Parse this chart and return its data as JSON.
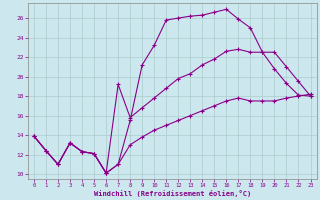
{
  "xlabel": "Windchill (Refroidissement éolien,°C)",
  "bg_color": "#cce8ee",
  "grid_color": "#aacccc",
  "line_color": "#880088",
  "xlim": [
    -0.5,
    23.5
  ],
  "ylim": [
    9.5,
    27.5
  ],
  "xticks": [
    0,
    1,
    2,
    3,
    4,
    5,
    6,
    7,
    8,
    9,
    10,
    11,
    12,
    13,
    14,
    15,
    16,
    17,
    18,
    19,
    20,
    21,
    22,
    23
  ],
  "yticks": [
    10,
    12,
    14,
    16,
    18,
    20,
    22,
    24,
    26
  ],
  "line1_x": [
    0,
    1,
    2,
    3,
    4,
    5,
    6,
    7,
    8,
    9,
    10,
    11,
    12,
    13,
    14,
    15,
    16,
    17,
    18,
    19,
    20,
    21,
    22,
    23
  ],
  "line1_y": [
    13.9,
    12.4,
    11.0,
    13.2,
    12.3,
    12.1,
    10.1,
    11.0,
    15.5,
    21.2,
    23.2,
    25.8,
    26.0,
    26.2,
    26.3,
    26.6,
    26.9,
    25.9,
    25.0,
    22.5,
    20.8,
    19.3,
    18.1,
    18.0
  ],
  "line2_x": [
    0,
    1,
    2,
    3,
    4,
    5,
    6,
    7,
    8,
    9,
    10,
    11,
    12,
    13,
    14,
    15,
    16,
    17,
    18,
    19,
    20,
    21,
    22,
    23
  ],
  "line2_y": [
    13.9,
    12.4,
    11.0,
    13.2,
    12.3,
    12.1,
    10.1,
    19.2,
    15.8,
    16.8,
    17.8,
    18.8,
    19.8,
    20.3,
    21.2,
    21.8,
    22.6,
    22.8,
    22.5,
    22.5,
    22.5,
    21.0,
    19.5,
    18.0
  ],
  "line3_x": [
    0,
    1,
    2,
    3,
    4,
    5,
    6,
    7,
    8,
    9,
    10,
    11,
    12,
    13,
    14,
    15,
    16,
    17,
    18,
    19,
    20,
    21,
    22,
    23
  ],
  "line3_y": [
    13.9,
    12.4,
    11.0,
    13.2,
    12.3,
    12.1,
    10.1,
    11.0,
    13.0,
    13.8,
    14.5,
    15.0,
    15.5,
    16.0,
    16.5,
    17.0,
    17.5,
    17.8,
    17.5,
    17.5,
    17.5,
    17.8,
    18.0,
    18.2
  ]
}
